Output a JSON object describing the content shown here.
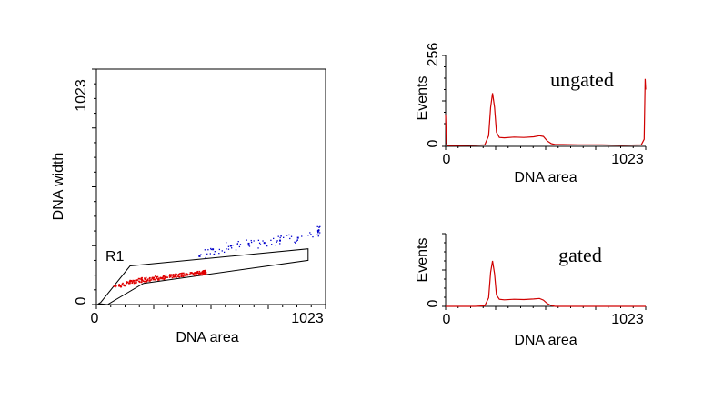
{
  "chart_data": [
    {
      "type": "scatter",
      "xlabel": "DNA area",
      "ylabel": "DNA width",
      "xlim": [
        0,
        1023
      ],
      "ylim": [
        0,
        1023
      ],
      "x_ticks": [
        "0",
        "1023"
      ],
      "y_ticks": [
        "0",
        "1023"
      ],
      "gate": {
        "label": "R1",
        "polygon": [
          [
            10,
            4
          ],
          [
            50,
            0
          ],
          [
            210,
            92
          ],
          [
            945,
            192
          ],
          [
            945,
            242
          ],
          [
            150,
            168
          ],
          [
            20,
            10
          ]
        ]
      },
      "series": [
        {
          "color": "#e00000",
          "points": [
            [
              80,
              80
            ],
            [
              150,
              100
            ],
            [
              200,
              110
            ],
            [
              250,
              115
            ],
            [
              300,
              122
            ],
            [
              350,
              128
            ],
            [
              400,
              133
            ],
            [
              450,
              138
            ],
            [
              480,
              142
            ]
          ]
        },
        {
          "color": "#0000cc",
          "points": [
            [
              460,
              210
            ],
            [
              520,
              240
            ],
            [
              600,
              255
            ],
            [
              680,
              265
            ],
            [
              750,
              268
            ],
            [
              820,
              278
            ],
            [
              900,
              290
            ],
            [
              990,
              320
            ]
          ]
        }
      ]
    },
    {
      "type": "line",
      "annotation": "ungated",
      "xlabel": "DNA area",
      "ylabel": "Events",
      "xlim": [
        0,
        1023
      ],
      "ylim": [
        0,
        256
      ],
      "x_ticks": [
        "0",
        "1023"
      ],
      "y_ticks": [
        "0",
        "256"
      ],
      "color": "#d00000",
      "x": [
        0,
        4,
        8,
        150,
        200,
        220,
        230,
        240,
        250,
        260,
        275,
        300,
        350,
        400,
        450,
        480,
        500,
        520,
        540,
        560,
        600,
        700,
        800,
        900,
        1000,
        1015,
        1020,
        1023
      ],
      "y": [
        90,
        10,
        2,
        3,
        4,
        30,
        110,
        150,
        110,
        40,
        25,
        24,
        26,
        25,
        27,
        30,
        28,
        15,
        8,
        5,
        5,
        4,
        4,
        3,
        4,
        20,
        190,
        160
      ]
    },
    {
      "type": "line",
      "annotation": "gated",
      "xlabel": "DNA area",
      "ylabel": "Events",
      "xlim": [
        0,
        1023
      ],
      "ylim": [
        0,
        256
      ],
      "x_ticks": [
        "0",
        "1023"
      ],
      "y_ticks": [
        "0"
      ],
      "color": "#d00000",
      "x": [
        0,
        150,
        200,
        220,
        230,
        240,
        250,
        260,
        275,
        300,
        350,
        400,
        450,
        480,
        500,
        520,
        540,
        560,
        600,
        700,
        800,
        1023
      ],
      "y": [
        0,
        0,
        2,
        30,
        120,
        160,
        115,
        40,
        25,
        23,
        25,
        24,
        26,
        28,
        22,
        10,
        3,
        0,
        0,
        0,
        0,
        0
      ]
    }
  ]
}
